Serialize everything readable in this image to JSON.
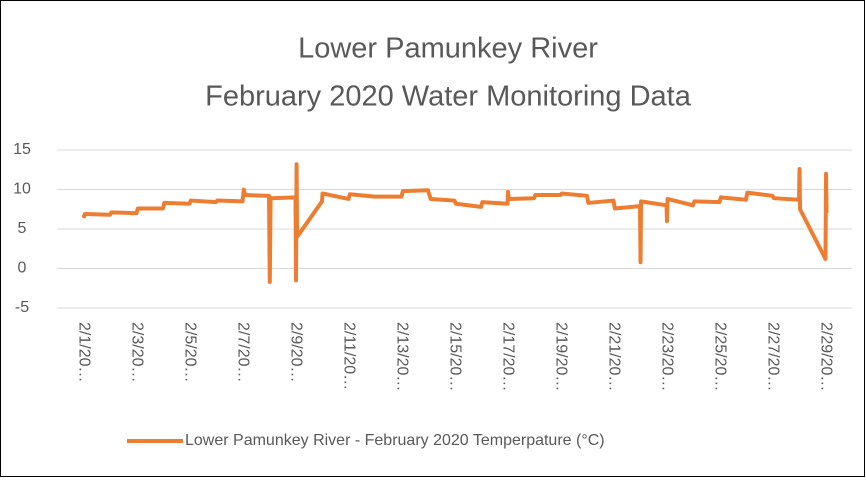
{
  "chart_data": {
    "type": "line",
    "title": [
      "Lower Pamunkey River",
      "February 2020 Water Monitoring Data"
    ],
    "x": [
      1.0,
      1.05,
      2.0,
      2.05,
      3.0,
      3.05,
      4.0,
      4.05,
      5.0,
      5.05,
      6.0,
      6.05,
      7.0,
      7.05,
      7.1,
      8.0,
      8.03,
      8.06,
      9.0,
      9.02,
      9.04,
      9.06,
      10.0,
      10.02,
      11.0,
      11.05,
      12.0,
      13.0,
      13.05,
      14.0,
      14.1,
      15.0,
      15.05,
      16.0,
      16.05,
      17.0,
      17.02,
      17.05,
      18.0,
      18.05,
      19.0,
      19.05,
      20.0,
      20.05,
      21.0,
      21.05,
      22.0,
      22.02,
      22.04,
      23.0,
      23.02,
      23.04,
      24.0,
      24.05,
      25.0,
      25.05,
      26.0,
      26.05,
      27.0,
      27.05,
      28.0,
      28.02,
      28.04,
      29.0,
      29.02,
      29.04
    ],
    "series": [
      {
        "name": "Lower Pamunkey River - February 2020 Temperpature (°C)",
        "color": "#ed7d31",
        "values": [
          6.4,
          6.9,
          6.8,
          7.1,
          7.0,
          7.6,
          7.6,
          8.3,
          8.2,
          8.6,
          8.4,
          8.6,
          8.5,
          10.0,
          9.3,
          9.2,
          -1.7,
          8.9,
          9.0,
          -1.5,
          13.2,
          4.0,
          8.5,
          9.5,
          8.8,
          9.4,
          9.1,
          9.1,
          9.8,
          9.9,
          8.8,
          8.6,
          8.2,
          7.8,
          8.4,
          8.2,
          9.7,
          8.8,
          8.9,
          9.3,
          9.3,
          9.5,
          9.2,
          8.3,
          8.6,
          7.6,
          7.9,
          0.8,
          8.5,
          8.0,
          6.0,
          8.8,
          8.0,
          8.5,
          8.4,
          9.0,
          8.7,
          9.6,
          9.2,
          8.9,
          8.7,
          12.6,
          7.5,
          1.2,
          12.0,
          7.0
        ]
      }
    ],
    "xlim": [
      0,
      30
    ],
    "xticks": [
      {
        "value": 1,
        "label": "2/1/20…"
      },
      {
        "value": 3,
        "label": "2/3/20…"
      },
      {
        "value": 5,
        "label": "2/5/20…"
      },
      {
        "value": 7,
        "label": "2/7/20…"
      },
      {
        "value": 9,
        "label": "2/9/20…"
      },
      {
        "value": 11,
        "label": "2/11/20…"
      },
      {
        "value": 13,
        "label": "2/13/20…"
      },
      {
        "value": 15,
        "label": "2/15/20…"
      },
      {
        "value": 17,
        "label": "2/17/20…"
      },
      {
        "value": 19,
        "label": "2/19/20…"
      },
      {
        "value": 21,
        "label": "2/21/20…"
      },
      {
        "value": 23,
        "label": "2/23/20…"
      },
      {
        "value": 25,
        "label": "2/25/20…"
      },
      {
        "value": 27,
        "label": "2/27/20…"
      },
      {
        "value": 29,
        "label": "2/29/20…"
      }
    ],
    "ylim": [
      -5,
      15
    ],
    "yticks": [
      -5,
      0,
      5,
      10,
      15
    ],
    "grid": true,
    "legend": "bottom"
  }
}
